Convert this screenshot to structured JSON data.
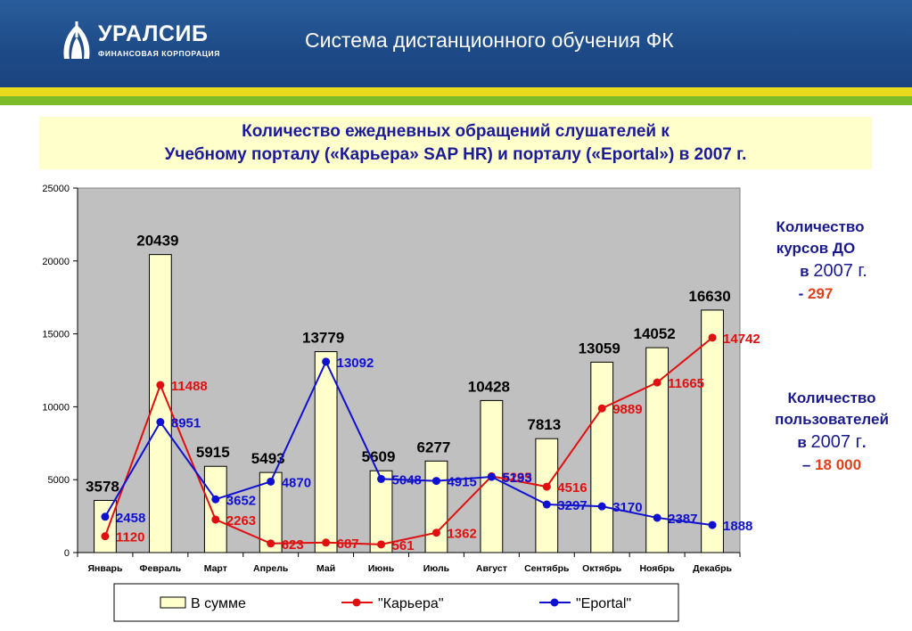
{
  "header": {
    "title": "Система  дистанционного обучения ФК"
  },
  "logo": {
    "name": "УРАЛСИБ",
    "subtitle": "ФИНАНСОВАЯ КОРПОРАЦИЯ"
  },
  "colors": {
    "header_blue": "#1f4e8c",
    "stripe_yellow": "#e8d91a",
    "stripe_green": "#7cbc2a",
    "bar_fill": "#ffffcc",
    "plot_bg": "#c0c0c0",
    "karera": "#e01010",
    "eportal": "#1010d0"
  },
  "title": {
    "line1": "Количество ежедневных обращений слушателей к",
    "line2": "Учебному порталу («Карьера» SAP HR) и порталу («Eportal») в 2007 г."
  },
  "side": {
    "courses_line1": "Количество",
    "courses_line2": "курсов ДО",
    "courses_line3_prefix": "в",
    "courses_line3_year": "2007 г.",
    "courses_dash": "-",
    "courses_value": "297",
    "users_line1": "Количество",
    "users_line2": "пользователей",
    "users_line3_prefix": "в",
    "users_line3_year": "2007 г",
    "users_line3_dot": ".",
    "users_dash": "–",
    "users_value": "18 000"
  },
  "chart_data": {
    "type": "bar",
    "categories": [
      "Январь",
      "Февраль",
      "Март",
      "Апрель",
      "Май",
      "Июнь",
      "Июль",
      "Август",
      "Сентябрь",
      "Октябрь",
      "Ноябрь",
      "Декабрь"
    ],
    "ylim": [
      0,
      25000
    ],
    "yticks": [
      0,
      5000,
      10000,
      15000,
      20000,
      25000
    ],
    "grid": false,
    "legend": "bottom",
    "series": [
      {
        "name": "В сумме",
        "kind": "bar",
        "color": "#ffffcc",
        "values": [
          3578,
          20439,
          5915,
          5493,
          13779,
          5609,
          6277,
          10428,
          7813,
          13059,
          14052,
          16630
        ]
      },
      {
        "name": "\"Карьера\"",
        "kind": "line",
        "color": "#e01010",
        "values": [
          1120,
          11488,
          2263,
          623,
          687,
          561,
          1362,
          5235,
          4516,
          9889,
          11665,
          14742
        ]
      },
      {
        "name": "\"Eportal\"",
        "kind": "line",
        "color": "#1010d0",
        "values": [
          2458,
          8951,
          3652,
          4870,
          13092,
          5048,
          4915,
          5193,
          3297,
          3170,
          2387,
          1888
        ]
      }
    ]
  }
}
